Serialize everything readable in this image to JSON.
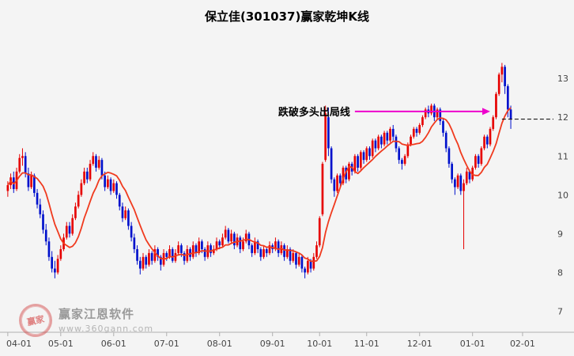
{
  "title": "保立佳(301037)赢家乾坤K线",
  "annotation": {
    "text": "跌破多头出局线",
    "arrow_color": "#ee00cc",
    "price": 12.15,
    "from_index": 118,
    "to_index": 164
  },
  "exit_line": {
    "price": 11.95,
    "from_index": 168,
    "color": "#000000",
    "style": "dashed"
  },
  "watermark": {
    "seal_text": "赢家",
    "brand": "赢家江恩软件",
    "url": "www.360gann.com"
  },
  "colors": {
    "up": "#e60000",
    "down": "#0011cc",
    "ma": "#f03a1e",
    "axis_line": "#b0b0b0",
    "bg": "#f4f4f4"
  },
  "chart_data": {
    "type": "candlestick",
    "title": "保立佳(301037)赢家乾坤K线",
    "ylim": [
      6.5,
      13.9
    ],
    "y_ticks": [
      13,
      12,
      11,
      10,
      9,
      8,
      7
    ],
    "total_slots": 186,
    "ma_period": 10,
    "x_ticks": [
      {
        "label": "04-01",
        "index": 0
      },
      {
        "label": "05-01",
        "index": 18
      },
      {
        "label": "06-01",
        "index": 36
      },
      {
        "label": "07-01",
        "index": 54
      },
      {
        "label": "08-01",
        "index": 72
      },
      {
        "label": "09-01",
        "index": 90
      },
      {
        "label": "10-01",
        "index": 106
      },
      {
        "label": "11-01",
        "index": 122
      },
      {
        "label": "12-01",
        "index": 140
      },
      {
        "label": "01-01",
        "index": 158
      },
      {
        "label": "02-01",
        "index": 175
      }
    ],
    "candles": [
      [
        10.1,
        10.35,
        9.95,
        10.25
      ],
      [
        10.25,
        10.55,
        10.15,
        10.45
      ],
      [
        10.45,
        10.6,
        10.05,
        10.15
      ],
      [
        10.15,
        10.7,
        10.1,
        10.6
      ],
      [
        10.6,
        11.05,
        10.55,
        10.95
      ],
      [
        10.95,
        11.2,
        10.75,
        11.0
      ],
      [
        11.0,
        11.1,
        10.45,
        10.55
      ],
      [
        10.55,
        10.7,
        10.1,
        10.2
      ],
      [
        10.2,
        10.6,
        10.15,
        10.5
      ],
      [
        10.5,
        10.55,
        9.95,
        10.05
      ],
      [
        10.05,
        10.15,
        9.65,
        9.75
      ],
      [
        9.75,
        9.9,
        9.4,
        9.5
      ],
      [
        9.5,
        9.6,
        9.0,
        9.1
      ],
      [
        9.1,
        9.25,
        8.7,
        8.8
      ],
      [
        8.8,
        8.9,
        8.3,
        8.4
      ],
      [
        8.4,
        8.55,
        8.0,
        8.1
      ],
      [
        8.1,
        8.3,
        7.85,
        8.0
      ],
      [
        8.0,
        8.45,
        7.95,
        8.35
      ],
      [
        8.35,
        8.7,
        8.3,
        8.6
      ],
      [
        8.6,
        9.0,
        8.55,
        8.9
      ],
      [
        8.9,
        9.3,
        8.85,
        9.2
      ],
      [
        9.2,
        9.3,
        8.9,
        9.0
      ],
      [
        9.0,
        9.5,
        8.95,
        9.4
      ],
      [
        9.4,
        9.8,
        9.35,
        9.7
      ],
      [
        9.7,
        10.1,
        9.65,
        10.0
      ],
      [
        10.0,
        10.4,
        9.95,
        10.3
      ],
      [
        10.3,
        10.7,
        10.25,
        10.6
      ],
      [
        10.6,
        10.7,
        10.3,
        10.4
      ],
      [
        10.4,
        10.9,
        10.35,
        10.8
      ],
      [
        10.8,
        11.1,
        10.75,
        11.0
      ],
      [
        11.0,
        11.05,
        10.6,
        10.7
      ],
      [
        10.7,
        11.0,
        10.65,
        10.9
      ],
      [
        10.9,
        10.95,
        10.4,
        10.5
      ],
      [
        10.5,
        10.6,
        10.1,
        10.2
      ],
      [
        10.2,
        10.5,
        10.15,
        10.4
      ],
      [
        10.4,
        10.45,
        10.0,
        10.1
      ],
      [
        10.1,
        10.4,
        10.05,
        10.3
      ],
      [
        10.3,
        10.35,
        9.9,
        10.0
      ],
      [
        10.0,
        10.05,
        9.6,
        9.7
      ],
      [
        9.7,
        9.8,
        9.3,
        9.4
      ],
      [
        9.4,
        9.7,
        9.35,
        9.6
      ],
      [
        9.6,
        9.65,
        9.1,
        9.2
      ],
      [
        9.2,
        9.3,
        8.8,
        8.9
      ],
      [
        8.9,
        9.0,
        8.5,
        8.6
      ],
      [
        8.6,
        8.7,
        8.2,
        8.3
      ],
      [
        8.3,
        8.4,
        7.95,
        8.1
      ],
      [
        8.1,
        8.5,
        8.05,
        8.4
      ],
      [
        8.4,
        8.45,
        8.1,
        8.2
      ],
      [
        8.2,
        8.6,
        8.15,
        8.5
      ],
      [
        8.5,
        8.55,
        8.2,
        8.3
      ],
      [
        8.3,
        8.7,
        8.25,
        8.6
      ],
      [
        8.6,
        8.65,
        8.3,
        8.4
      ],
      [
        8.4,
        8.45,
        8.05,
        8.2
      ],
      [
        8.2,
        8.6,
        8.15,
        8.5
      ],
      [
        8.5,
        8.55,
        8.3,
        8.4
      ],
      [
        8.4,
        8.7,
        8.35,
        8.6
      ],
      [
        8.6,
        8.65,
        8.25,
        8.3
      ],
      [
        8.3,
        8.6,
        8.25,
        8.5
      ],
      [
        8.5,
        8.8,
        8.45,
        8.7
      ],
      [
        8.7,
        8.75,
        8.4,
        8.5
      ],
      [
        8.5,
        8.55,
        8.2,
        8.3
      ],
      [
        8.3,
        8.7,
        8.25,
        8.6
      ],
      [
        8.6,
        8.65,
        8.3,
        8.4
      ],
      [
        8.4,
        8.8,
        8.35,
        8.7
      ],
      [
        8.7,
        8.75,
        8.4,
        8.5
      ],
      [
        8.5,
        8.9,
        8.45,
        8.8
      ],
      [
        8.8,
        8.85,
        8.5,
        8.6
      ],
      [
        8.6,
        8.65,
        8.3,
        8.4
      ],
      [
        8.4,
        8.8,
        8.35,
        8.7
      ],
      [
        8.7,
        8.75,
        8.4,
        8.5
      ],
      [
        8.5,
        8.7,
        8.45,
        8.6
      ],
      [
        8.6,
        8.9,
        8.55,
        8.8
      ],
      [
        8.8,
        8.85,
        8.6,
        8.7
      ],
      [
        8.7,
        9.0,
        8.65,
        8.9
      ],
      [
        8.9,
        9.2,
        8.85,
        9.1
      ],
      [
        9.1,
        9.15,
        8.75,
        8.8
      ],
      [
        8.8,
        9.1,
        8.75,
        9.0
      ],
      [
        9.0,
        9.05,
        8.6,
        8.7
      ],
      [
        8.7,
        9.0,
        8.65,
        8.9
      ],
      [
        8.9,
        8.95,
        8.5,
        8.6
      ],
      [
        8.6,
        8.9,
        8.55,
        8.8
      ],
      [
        8.8,
        9.1,
        8.75,
        9.0
      ],
      [
        9.0,
        9.05,
        8.6,
        8.7
      ],
      [
        8.7,
        8.75,
        8.4,
        8.5
      ],
      [
        8.5,
        8.9,
        8.45,
        8.8
      ],
      [
        8.8,
        8.85,
        8.5,
        8.6
      ],
      [
        8.6,
        8.65,
        8.3,
        8.4
      ],
      [
        8.4,
        8.7,
        8.35,
        8.6
      ],
      [
        8.6,
        8.65,
        8.4,
        8.5
      ],
      [
        8.5,
        8.8,
        8.45,
        8.7
      ],
      [
        8.7,
        8.75,
        8.5,
        8.6
      ],
      [
        8.6,
        8.9,
        8.55,
        8.8
      ],
      [
        8.8,
        8.85,
        8.4,
        8.5
      ],
      [
        8.5,
        8.8,
        8.45,
        8.7
      ],
      [
        8.7,
        8.75,
        8.3,
        8.4
      ],
      [
        8.4,
        8.7,
        8.35,
        8.6
      ],
      [
        8.6,
        8.65,
        8.2,
        8.3
      ],
      [
        8.3,
        8.6,
        8.25,
        8.5
      ],
      [
        8.5,
        8.55,
        8.1,
        8.2
      ],
      [
        8.2,
        8.5,
        8.15,
        8.4
      ],
      [
        8.4,
        8.45,
        8.0,
        8.1
      ],
      [
        8.1,
        8.15,
        7.85,
        8.0
      ],
      [
        8.0,
        8.4,
        7.95,
        8.3
      ],
      [
        8.3,
        8.35,
        8.0,
        8.1
      ],
      [
        8.1,
        8.5,
        8.05,
        8.4
      ],
      [
        8.4,
        8.8,
        8.35,
        8.7
      ],
      [
        8.7,
        9.45,
        8.65,
        9.4
      ],
      [
        9.5,
        10.85,
        9.45,
        10.8
      ],
      [
        10.9,
        12.3,
        10.85,
        12.1
      ],
      [
        12.0,
        12.25,
        11.0,
        11.2
      ],
      [
        11.2,
        11.25,
        10.3,
        10.4
      ],
      [
        10.4,
        10.45,
        9.95,
        10.1
      ],
      [
        10.1,
        10.55,
        10.05,
        10.5
      ],
      [
        10.5,
        10.55,
        10.2,
        10.3
      ],
      [
        10.3,
        10.75,
        10.25,
        10.7
      ],
      [
        10.7,
        10.75,
        10.3,
        10.4
      ],
      [
        10.4,
        10.85,
        10.35,
        10.8
      ],
      [
        10.8,
        10.85,
        10.5,
        10.6
      ],
      [
        10.6,
        11.05,
        10.55,
        11.0
      ],
      [
        11.0,
        11.05,
        10.6,
        10.7
      ],
      [
        10.7,
        11.15,
        10.65,
        11.1
      ],
      [
        11.1,
        11.15,
        10.8,
        10.9
      ],
      [
        10.9,
        11.25,
        10.85,
        11.2
      ],
      [
        11.2,
        11.25,
        10.9,
        11.0
      ],
      [
        11.0,
        11.45,
        10.95,
        11.4
      ],
      [
        11.4,
        11.45,
        11.1,
        11.2
      ],
      [
        11.2,
        11.55,
        11.15,
        11.5
      ],
      [
        11.5,
        11.55,
        11.2,
        11.3
      ],
      [
        11.3,
        11.65,
        11.25,
        11.6
      ],
      [
        11.6,
        11.65,
        11.3,
        11.4
      ],
      [
        11.4,
        11.75,
        11.35,
        11.7
      ],
      [
        11.7,
        11.8,
        11.4,
        11.5
      ],
      [
        11.5,
        11.55,
        11.1,
        11.2
      ],
      [
        11.2,
        11.25,
        10.8,
        10.9
      ],
      [
        10.9,
        10.95,
        10.65,
        10.8
      ],
      [
        10.8,
        11.05,
        10.75,
        11.0
      ],
      [
        11.0,
        11.35,
        10.95,
        11.3
      ],
      [
        11.3,
        11.55,
        11.25,
        11.5
      ],
      [
        11.5,
        11.75,
        11.45,
        11.7
      ],
      [
        11.7,
        11.75,
        11.5,
        11.6
      ],
      [
        11.6,
        11.85,
        11.55,
        11.8
      ],
      [
        11.8,
        12.05,
        11.75,
        12.0
      ],
      [
        12.0,
        12.25,
        11.95,
        12.2
      ],
      [
        12.2,
        12.3,
        12.0,
        12.1
      ],
      [
        12.1,
        12.35,
        12.05,
        12.3
      ],
      [
        12.3,
        12.35,
        11.9,
        12.0
      ],
      [
        12.0,
        12.25,
        11.95,
        12.2
      ],
      [
        12.2,
        12.25,
        11.8,
        11.9
      ],
      [
        11.9,
        11.95,
        11.5,
        11.6
      ],
      [
        11.6,
        11.65,
        11.1,
        11.2
      ],
      [
        11.2,
        11.25,
        10.7,
        10.8
      ],
      [
        10.8,
        10.85,
        10.3,
        10.4
      ],
      [
        10.4,
        10.45,
        10.0,
        10.2
      ],
      [
        10.2,
        10.55,
        10.15,
        10.5
      ],
      [
        10.5,
        10.55,
        10.0,
        10.1
      ],
      [
        10.1,
        10.4,
        8.6,
        10.3
      ],
      [
        10.3,
        10.7,
        10.25,
        10.6
      ],
      [
        10.6,
        10.65,
        10.3,
        10.4
      ],
      [
        10.4,
        10.75,
        10.35,
        10.7
      ],
      [
        10.7,
        11.05,
        10.65,
        11.0
      ],
      [
        11.0,
        11.05,
        10.7,
        10.8
      ],
      [
        10.8,
        11.25,
        10.75,
        11.2
      ],
      [
        11.2,
        11.55,
        11.15,
        11.5
      ],
      [
        11.5,
        11.55,
        11.2,
        11.3
      ],
      [
        11.3,
        11.75,
        11.25,
        11.7
      ],
      [
        11.7,
        12.05,
        11.65,
        12.0
      ],
      [
        12.0,
        12.65,
        11.95,
        12.6
      ],
      [
        12.6,
        13.15,
        12.55,
        13.1
      ],
      [
        13.1,
        13.4,
        12.9,
        13.3
      ],
      [
        13.3,
        13.35,
        12.6,
        12.8
      ],
      [
        12.8,
        12.85,
        12.0,
        12.2
      ],
      [
        12.2,
        12.3,
        11.7,
        11.95
      ]
    ]
  }
}
